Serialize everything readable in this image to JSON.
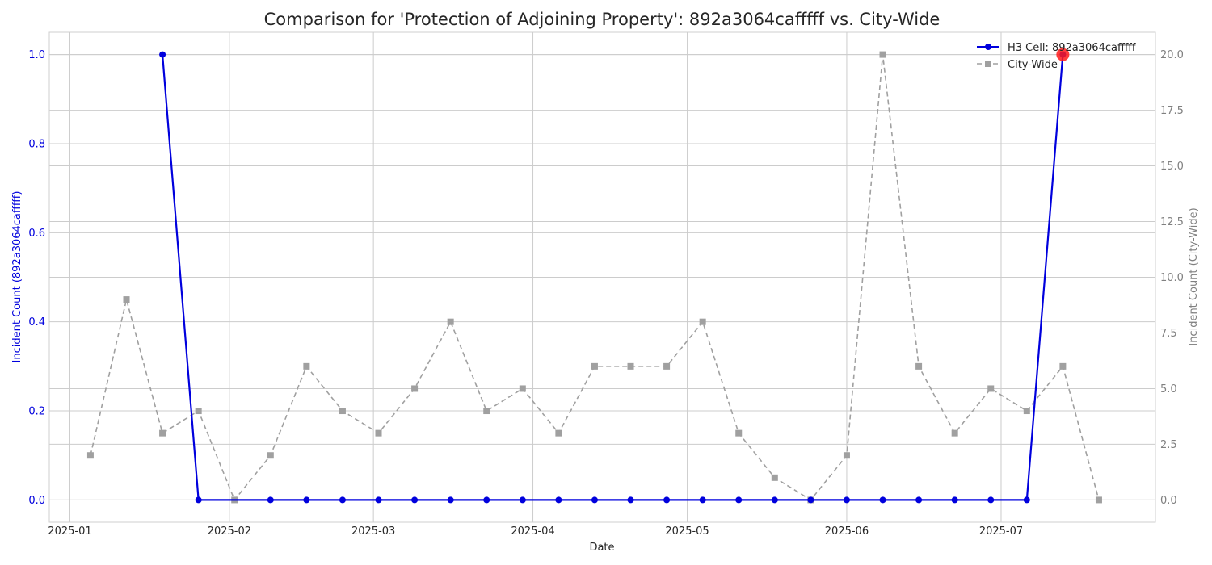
{
  "chart_data": {
    "type": "line",
    "title": "Comparison for 'Protection of Adjoining Property': 892a3064cafffff vs. City-Wide",
    "xlabel": "Date",
    "ylabel_left": "Incident Count (892a3064cafffff)",
    "ylabel_right": "Incident Count (City-Wide)",
    "x_ticks": [
      "2025-01",
      "2025-02",
      "2025-03",
      "2025-04",
      "2025-05",
      "2025-06",
      "2025-07"
    ],
    "y_left_ticks": [
      "0.0",
      "0.2",
      "0.4",
      "0.6",
      "0.8",
      "1.0"
    ],
    "y_right_ticks": [
      "0.0",
      "2.5",
      "5.0",
      "7.5",
      "10.0",
      "12.5",
      "15.0",
      "17.5",
      "20.0"
    ],
    "ylim_left": [
      -0.05,
      1.05
    ],
    "ylim_right": [
      -1,
      21
    ],
    "xlim": [
      "2024-12-28",
      "2025-07-31"
    ],
    "grid": true,
    "legend_position": "top-right",
    "colors": {
      "h3": "#0000dd",
      "city": "#a0a0a0",
      "highlight": "#ff1a1a"
    },
    "series": [
      {
        "name": "H3 Cell: 892a3064cafffff",
        "axis": "left",
        "x": [
          "2025-01-19",
          "2025-01-26",
          "2025-02-09",
          "2025-02-16",
          "2025-02-23",
          "2025-03-02",
          "2025-03-09",
          "2025-03-16",
          "2025-03-23",
          "2025-03-30",
          "2025-04-06",
          "2025-04-13",
          "2025-04-20",
          "2025-04-27",
          "2025-05-04",
          "2025-05-11",
          "2025-05-18",
          "2025-05-25",
          "2025-06-01",
          "2025-06-08",
          "2025-06-15",
          "2025-06-22",
          "2025-06-29",
          "2025-07-06",
          "2025-07-13"
        ],
        "values": [
          1,
          0,
          0,
          0,
          0,
          0,
          0,
          0,
          0,
          0,
          0,
          0,
          0,
          0,
          0,
          0,
          0,
          0,
          0,
          0,
          0,
          0,
          0,
          0,
          1
        ]
      },
      {
        "name": "City-Wide",
        "axis": "right",
        "x": [
          "2025-01-05",
          "2025-01-12",
          "2025-01-19",
          "2025-01-26",
          "2025-02-02",
          "2025-02-09",
          "2025-02-16",
          "2025-02-23",
          "2025-03-02",
          "2025-03-09",
          "2025-03-16",
          "2025-03-23",
          "2025-03-30",
          "2025-04-06",
          "2025-04-13",
          "2025-04-20",
          "2025-04-27",
          "2025-05-04",
          "2025-05-11",
          "2025-05-18",
          "2025-05-25",
          "2025-06-01",
          "2025-06-08",
          "2025-06-15",
          "2025-06-22",
          "2025-06-29",
          "2025-07-06",
          "2025-07-13",
          "2025-07-20"
        ],
        "values": [
          2,
          9,
          3,
          4,
          0,
          2,
          6,
          4,
          3,
          5,
          8,
          4,
          5,
          3,
          6,
          6,
          6,
          8,
          3,
          1,
          0,
          2,
          20,
          6,
          3,
          5,
          4,
          6,
          0
        ]
      }
    ],
    "highlight_point": {
      "series": "H3 Cell: 892a3064cafffff",
      "x": "2025-07-13",
      "value": 1
    }
  }
}
